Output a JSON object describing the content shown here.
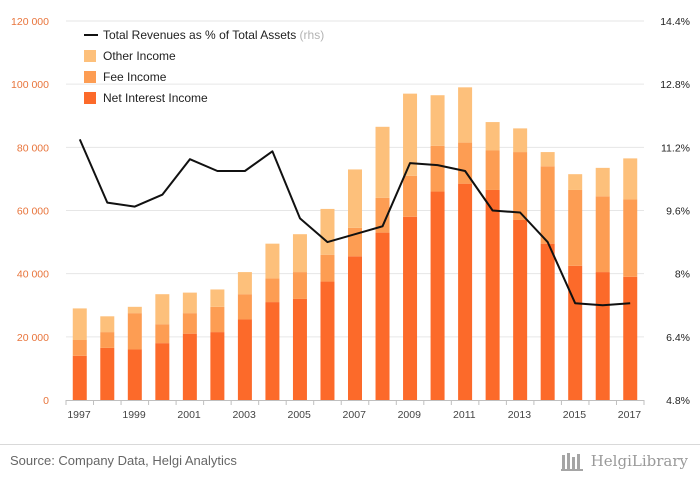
{
  "chart_data": {
    "type": "bar",
    "stacked": true,
    "categories": [
      "1997",
      "1998",
      "1999",
      "2000",
      "2001",
      "2002",
      "2003",
      "2004",
      "2005",
      "2006",
      "2007",
      "2008",
      "2009",
      "2010",
      "2011",
      "2012",
      "2013",
      "2014",
      "2015",
      "2016",
      "2017"
    ],
    "x_tick_labels": [
      "1997",
      "1999",
      "2001",
      "2003",
      "2005",
      "2007",
      "2009",
      "2011",
      "2013",
      "2015",
      "2017"
    ],
    "series": [
      {
        "name": "Net Interest Income",
        "axis": "left",
        "color": "#fc6a2a",
        "values": [
          14000,
          16500,
          16000,
          18000,
          21000,
          21500,
          25500,
          31000,
          32000,
          37500,
          45500,
          53000,
          58000,
          66000,
          68500,
          66500,
          57000,
          49500,
          42500,
          40500,
          39000
        ]
      },
      {
        "name": "Fee Income",
        "axis": "left",
        "color": "#fd9d53",
        "values": [
          5000,
          5000,
          11500,
          6000,
          6500,
          8000,
          8000,
          7500,
          8500,
          8500,
          9000,
          11000,
          13000,
          14500,
          13000,
          12500,
          21500,
          24500,
          24000,
          24000,
          24500
        ]
      },
      {
        "name": "Other Income",
        "axis": "left",
        "color": "#fdc07b",
        "values": [
          10000,
          5000,
          2000,
          9500,
          6500,
          5500,
          7000,
          11000,
          12000,
          14500,
          18500,
          22500,
          26000,
          16000,
          17500,
          9000,
          7500,
          4500,
          5000,
          9000,
          13000
        ]
      },
      {
        "name": "Total Revenues as % of Total Assets",
        "suffix": "(rhs)",
        "axis": "right",
        "type": "line",
        "color": "#111111",
        "values": [
          11.4,
          9.8,
          9.7,
          10.0,
          10.9,
          10.6,
          10.6,
          11.1,
          9.4,
          8.8,
          9.0,
          9.2,
          10.8,
          10.75,
          10.6,
          9.6,
          9.55,
          8.8,
          7.25,
          7.2,
          7.25
        ]
      }
    ],
    "yaxis_left": {
      "ticks": [
        "0",
        "20 000",
        "40 000",
        "60 000",
        "80 000",
        "100 000",
        "120 000"
      ],
      "min": 0,
      "max": 120000
    },
    "yaxis_right": {
      "ticks": [
        "4.8%",
        "6.4%",
        "8%",
        "9.6%",
        "11.2%",
        "12.8%",
        "14.4%"
      ],
      "min": 4.8,
      "max": 14.4
    },
    "legend_position": "top-left",
    "grid": "horizontal"
  },
  "footer": {
    "source": "Source: Company Data, Helgi Analytics",
    "brand": "HelgiLibrary"
  }
}
